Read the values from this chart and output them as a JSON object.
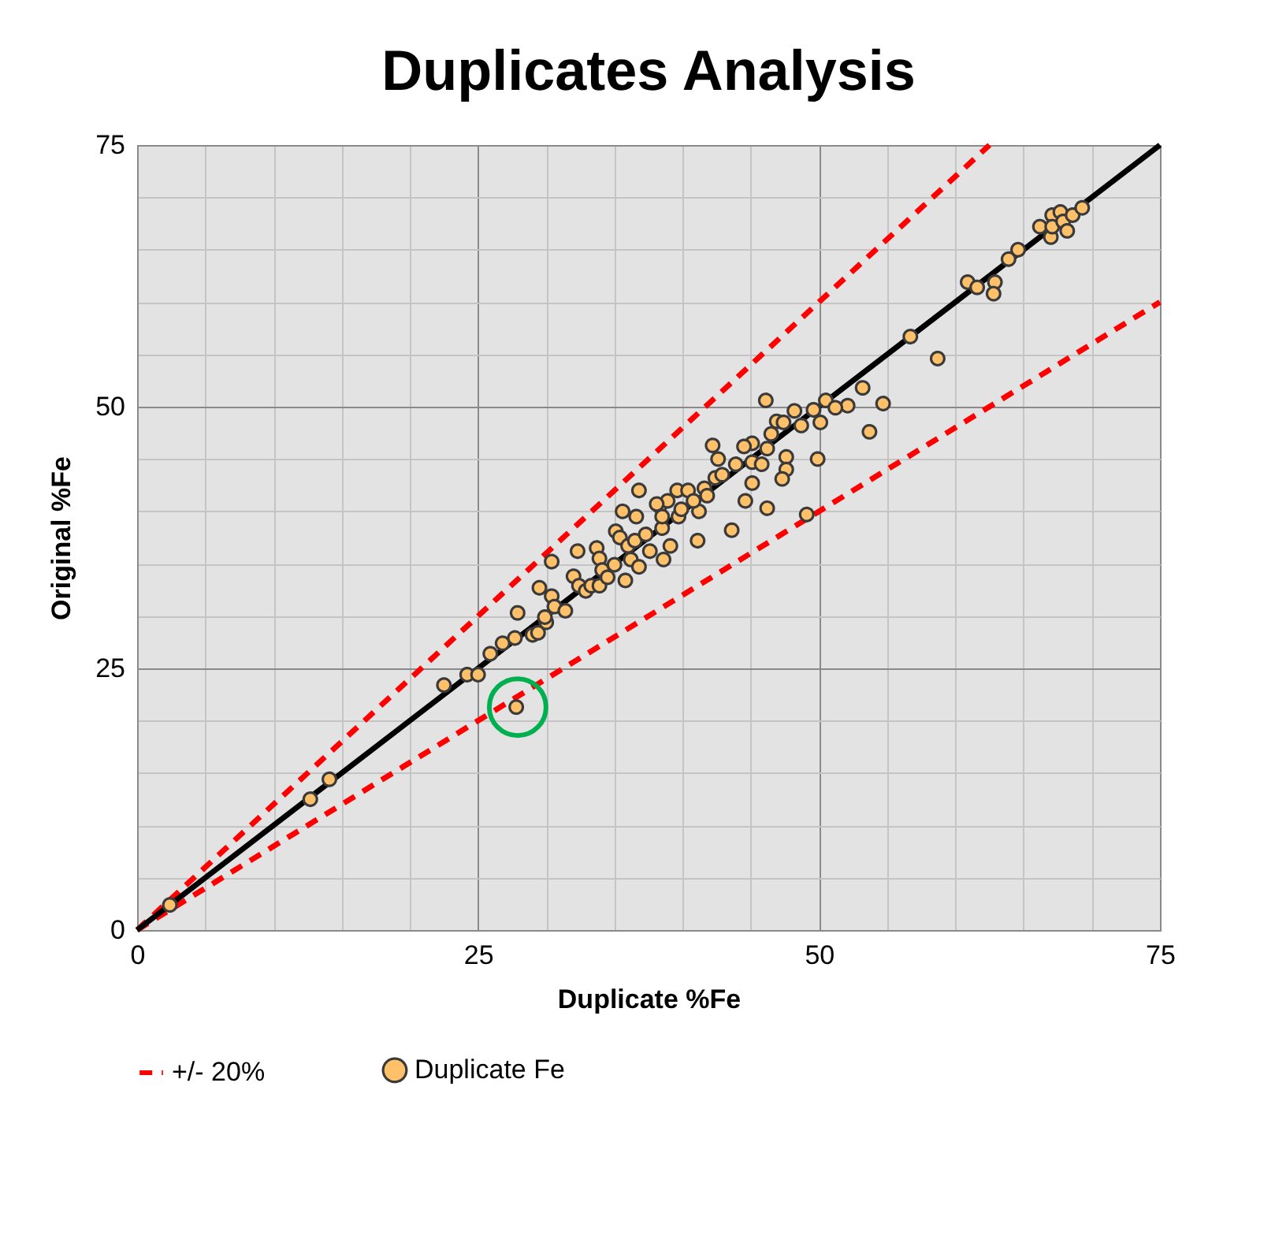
{
  "chart_data": {
    "type": "scatter",
    "title": "Duplicates Analysis",
    "xlabel": "Duplicate %Fe",
    "ylabel": "Original %Fe",
    "xlim": [
      0,
      75
    ],
    "ylim": [
      0,
      75
    ],
    "xticks": [
      0,
      {
        "value": 5,
        "label": null
      },
      {
        "value": 10,
        "label": null
      },
      {
        "value": 15,
        "label": null
      },
      {
        "value": 20,
        "label": null
      },
      25,
      {
        "value": 30,
        "label": null
      },
      {
        "value": 35,
        "label": null
      },
      {
        "value": 40,
        "label": null
      },
      {
        "value": 45,
        "label": null
      },
      50,
      {
        "value": 55,
        "label": null
      },
      {
        "value": 60,
        "label": null
      },
      {
        "value": 65,
        "label": null
      },
      {
        "value": 70,
        "label": null
      },
      75
    ],
    "yticks": [
      0,
      {
        "value": 5,
        "label": null
      },
      {
        "value": 10,
        "label": null
      },
      {
        "value": 15,
        "label": null
      },
      {
        "value": 20,
        "label": null
      },
      25,
      {
        "value": 30,
        "label": null
      },
      {
        "value": 35,
        "label": null
      },
      {
        "value": 40,
        "label": null
      },
      {
        "value": 45,
        "label": null
      },
      50,
      {
        "value": 55,
        "label": null
      },
      {
        "value": 60,
        "label": null
      },
      {
        "value": 65,
        "label": null
      },
      {
        "value": 70,
        "label": null
      },
      75
    ],
    "grid": true,
    "legend": "bottom",
    "series": [
      {
        "name": "+/- 20%",
        "type": "line",
        "marker": "none",
        "line_style": "dashed",
        "color": "#ff0000",
        "x": [
          0,
          62.5
        ],
        "values": [
          0,
          75
        ]
      },
      {
        "type": "line",
        "marker": "none",
        "line_style": "dashed",
        "color": "#ff0000",
        "x": [
          0,
          75
        ],
        "values": [
          0,
          60
        ]
      },
      {
        "type": "line",
        "marker": "none",
        "line_style": "solid",
        "color": "#000000",
        "x": [
          0,
          75
        ],
        "values": [
          0,
          75
        ]
      },
      {
        "name": "Duplicate Fe",
        "type": "scatter",
        "marker": "circle",
        "color": "#ffc06a",
        "x": [
          2.4,
          12.7,
          14.1,
          22.5,
          24.2,
          25.0,
          25.9,
          26.8,
          27.7,
          27.9,
          27.8,
          29.0,
          29.4,
          29.5,
          30.0,
          29.9,
          30.4,
          30.6,
          31.4,
          30.4,
          32.3,
          32.0,
          32.4,
          32.9,
          33.3,
          33.9,
          33.7,
          33.9,
          34.1,
          34.5,
          35.0,
          35.1,
          35.4,
          35.6,
          35.8,
          36.0,
          36.2,
          36.6,
          36.8,
          36.5,
          36.8,
          37.3,
          37.6,
          38.3,
          38.5,
          38.6,
          38.9,
          39.1,
          39.6,
          39.7,
          40.4,
          39.9,
          41.1,
          46.1,
          48.2,
          49.6,
          50.5,
          52.1,
          53.2,
          54.7,
          53.7,
          58.7,
          49.9,
          49.1,
          46.2,
          44.6,
          43.6,
          42.2,
          42.6,
          45.1,
          44.5,
          46.9,
          46.5,
          47.6,
          47.6,
          47.3,
          47.4,
          48.7,
          50.1,
          51.2,
          41.2,
          41.6,
          42.4,
          42.9,
          43.9,
          45.1,
          45.8,
          45.1,
          46.2,
          38.5,
          40.8,
          38.1,
          41.8,
          56.7,
          60.9,
          61.6,
          62.9,
          62.8,
          63.9,
          64.6,
          66.2,
          67.0,
          67.1,
          67.1,
          67.7,
          67.9,
          68.2,
          68.6,
          69.3
        ],
        "values": [
          2.4,
          12.5,
          14.4,
          23.4,
          24.4,
          24.4,
          26.4,
          27.4,
          27.9,
          30.3,
          21.3,
          28.2,
          28.4,
          32.7,
          29.4,
          29.9,
          31.9,
          30.9,
          30.5,
          35.2,
          36.2,
          33.8,
          32.9,
          32.4,
          32.9,
          32.9,
          36.5,
          35.5,
          34.4,
          33.7,
          34.9,
          38.1,
          37.5,
          40.0,
          33.4,
          36.7,
          35.4,
          39.5,
          42.0,
          37.2,
          34.7,
          37.8,
          36.2,
          40.5,
          38.4,
          35.4,
          41.0,
          36.7,
          42.0,
          39.5,
          42.0,
          40.2,
          37.2,
          50.6,
          49.6,
          49.7,
          50.6,
          50.1,
          51.8,
          50.3,
          47.6,
          54.6,
          45.0,
          39.7,
          40.3,
          41.0,
          38.2,
          46.3,
          45.0,
          46.5,
          46.2,
          48.6,
          47.4,
          45.2,
          44.0,
          43.1,
          48.5,
          48.2,
          48.5,
          49.9,
          40.0,
          42.2,
          43.2,
          43.5,
          44.5,
          44.7,
          44.5,
          42.7,
          46.0,
          39.5,
          41.0,
          40.7,
          41.5,
          56.7,
          61.9,
          61.4,
          61.9,
          60.8,
          64.1,
          65.0,
          67.2,
          66.2,
          68.3,
          67.2,
          68.6,
          67.7,
          66.8,
          68.3,
          69.0
        ]
      }
    ]
  }
}
